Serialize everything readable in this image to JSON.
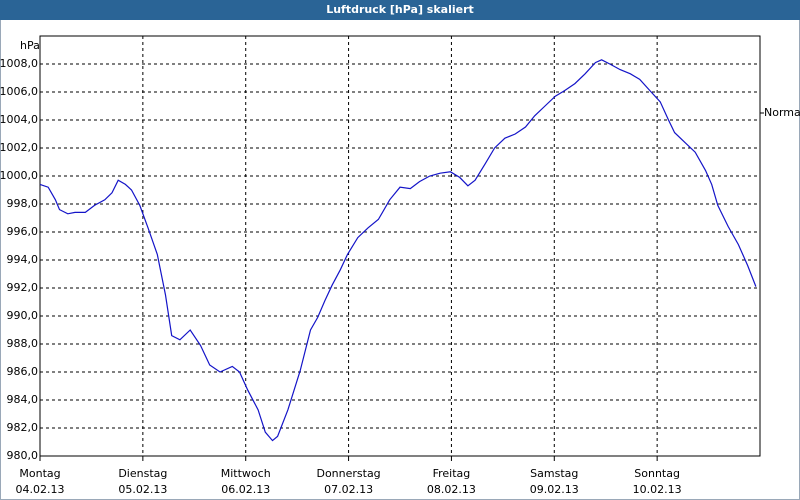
{
  "chart_data": {
    "type": "line",
    "title": "Luftdruck [hPa] skaliert",
    "y_label": "hPa",
    "x": [
      0,
      0.08,
      0.15,
      0.19,
      0.27,
      0.34,
      0.44,
      0.53,
      0.63,
      0.7,
      0.76,
      0.83,
      0.89,
      0.97,
      1.05,
      1.14,
      1.22,
      1.28,
      1.36,
      1.46,
      1.56,
      1.65,
      1.75,
      1.87,
      1.94,
      2.02,
      2.12,
      2.19,
      2.26,
      2.31,
      2.41,
      2.53,
      2.63,
      2.7,
      2.77,
      2.84,
      2.92,
      2.99,
      3.09,
      3.19,
      3.29,
      3.4,
      3.5,
      3.6,
      3.69,
      3.79,
      3.89,
      3.99,
      4.08,
      4.16,
      4.23,
      4.33,
      4.42,
      4.52,
      4.62,
      4.72,
      4.81,
      4.91,
      5.01,
      5.1,
      5.2,
      5.3,
      5.4,
      5.46,
      5.54,
      5.64,
      5.74,
      5.83,
      5.93,
      6.03,
      6.11,
      6.17,
      6.27,
      6.37,
      6.47,
      6.53,
      6.59,
      6.69,
      6.79,
      6.88,
      6.96
    ],
    "series": [
      {
        "color": "#1414c8",
        "values": [
          999.4,
          999.2,
          998.3,
          997.6,
          997.3,
          997.4,
          997.4,
          997.9,
          998.3,
          998.8,
          999.7,
          999.4,
          999.0,
          997.9,
          996.3,
          994.4,
          991.5,
          988.6,
          988.3,
          989.0,
          987.9,
          986.5,
          986.0,
          986.4,
          986.0,
          984.7,
          983.3,
          981.7,
          981.1,
          981.4,
          983.3,
          986.1,
          989.0,
          989.9,
          991.1,
          992.2,
          993.3,
          994.4,
          995.6,
          996.3,
          996.9,
          998.3,
          999.2,
          999.1,
          999.6,
          1000.0,
          1000.2,
          1000.3,
          999.9,
          999.3,
          999.7,
          1000.9,
          1002.0,
          1002.7,
          1003.0,
          1003.5,
          1004.3,
          1005.0,
          1005.7,
          1006.1,
          1006.6,
          1007.3,
          1008.1,
          1008.3,
          1008.0,
          1007.6,
          1007.3,
          1006.9,
          1006.1,
          1005.3,
          1004.0,
          1003.1,
          1002.4,
          1001.7,
          1000.4,
          999.4,
          997.9,
          996.4,
          995.1,
          993.6,
          992.1
        ]
      }
    ],
    "xlim": [
      0,
      7
    ],
    "xticks": [
      {
        "value": 0,
        "label": "Montag",
        "date": "04.02.13"
      },
      {
        "value": 1,
        "label": "Dienstag",
        "date": "05.02.13"
      },
      {
        "value": 2,
        "label": "Mittwoch",
        "date": "06.02.13"
      },
      {
        "value": 3,
        "label": "Donnerstag",
        "date": "07.02.13"
      },
      {
        "value": 4,
        "label": "Freitag",
        "date": "08.02.13"
      },
      {
        "value": 5,
        "label": "Samstag",
        "date": "09.02.13"
      },
      {
        "value": 6,
        "label": "Sonntag",
        "date": "10.02.13"
      }
    ],
    "ylim": [
      980,
      1010
    ],
    "yticks": [
      {
        "value": 980,
        "label": "980,0"
      },
      {
        "value": 982,
        "label": "982,0"
      },
      {
        "value": 984,
        "label": "984,0"
      },
      {
        "value": 986,
        "label": "986,0"
      },
      {
        "value": 988,
        "label": "988,0"
      },
      {
        "value": 990,
        "label": "990,0"
      },
      {
        "value": 992,
        "label": "992,0"
      },
      {
        "value": 994,
        "label": "994,0"
      },
      {
        "value": 996,
        "label": "996,0"
      },
      {
        "value": 998,
        "label": "998,0"
      },
      {
        "value": 1000,
        "label": "1000,0"
      },
      {
        "value": 1002,
        "label": "1002,0"
      },
      {
        "value": 1004,
        "label": "1004,0"
      },
      {
        "value": 1006,
        "label": "1006,0"
      },
      {
        "value": 1008,
        "label": "1008,0"
      }
    ],
    "reference": {
      "label": "Normal",
      "value": 1004.5
    },
    "grid": true
  }
}
